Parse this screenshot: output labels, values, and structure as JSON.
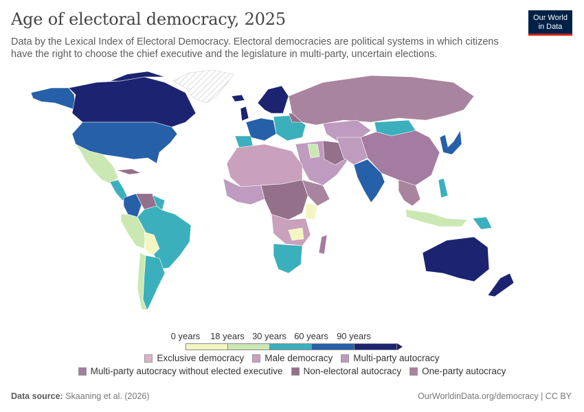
{
  "header": {
    "title": "Age of electoral democracy, 2025",
    "subtitle": "Data by the Lexical Index of Electoral Democracy. Electoral democracies are political systems in which citizens have the right to choose the chief executive and the legislature in multi-party, uncertain elections."
  },
  "logo": {
    "line1": "Our World",
    "line2": "in Data",
    "bg": "#002147",
    "accent": "#ce261e"
  },
  "scale": {
    "labels": [
      "0 years",
      "18 years",
      "30 years",
      "60 years",
      "90 years"
    ],
    "colors": [
      "#f3f6c0",
      "#cbe8b3",
      "#3bb0bc",
      "#2660a8",
      "#1c2370"
    ]
  },
  "categories": [
    {
      "label": "Exclusive democracy",
      "color": "#d9b4c8"
    },
    {
      "label": "Male democracy",
      "color": "#c9a1bc"
    },
    {
      "label": "Multi-party autocracy",
      "color": "#bf9bbf"
    },
    {
      "label": "Multi-party autocracy without elected executive",
      "color": "#a47ba1"
    },
    {
      "label": "Non-electoral autocracy",
      "color": "#94708b"
    },
    {
      "label": "One-party autocracy",
      "color": "#a8849e"
    }
  ],
  "footer": {
    "source_label": "Data source:",
    "source_text": "Skaaning et al. (2026)",
    "url": "OurWorldinData.org/democracy | CC BY"
  }
}
